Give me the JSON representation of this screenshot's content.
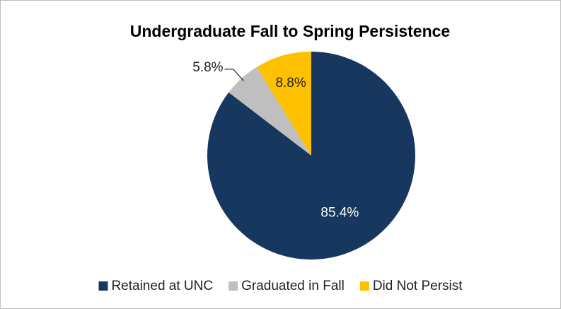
{
  "chart_data": {
    "type": "pie",
    "title": "Undergraduate Fall to Spring Persistence",
    "categories": [
      "Retained at UNC",
      "Graduated in Fall",
      "Did Not Persist"
    ],
    "values": [
      85.4,
      5.8,
      8.8
    ],
    "value_labels": [
      "85.4%",
      "5.8%",
      "8.8%"
    ],
    "colors": [
      "#17375e",
      "#bfbfbf",
      "#ffc000"
    ],
    "legend": "bottom"
  }
}
